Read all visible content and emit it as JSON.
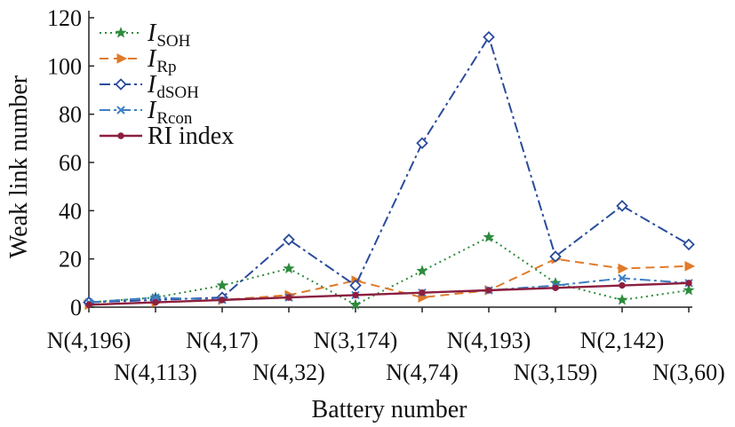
{
  "chart_data": {
    "type": "line",
    "xlabel": "Battery number",
    "ylabel": "Weak link number",
    "ylim": [
      0,
      120
    ],
    "yticks": [
      0,
      20,
      40,
      60,
      80,
      100,
      120
    ],
    "grid": false,
    "legend_position": "top-left",
    "categories": [
      "N(4,196)",
      "N(4,113)",
      "N(4,17)",
      "N(4,32)",
      "N(3,174)",
      "N(4,74)",
      "N(4,193)",
      "N(3,159)",
      "N(2,142)",
      "N(3,60)"
    ],
    "series": [
      {
        "key": "isoh",
        "name_main": "I",
        "name_sub": "SOH",
        "color": "#2e8b3e",
        "marker": "star",
        "dash": "2,4",
        "values": [
          2,
          4,
          9,
          16,
          1,
          15,
          29,
          10,
          3,
          7
        ]
      },
      {
        "key": "irp",
        "name_main": "I",
        "name_sub": "Rp",
        "color": "#e07b2a",
        "marker": "triangle-right",
        "dash": "10,6",
        "values": [
          1,
          2,
          3,
          5,
          11,
          4,
          7,
          20,
          16,
          17
        ]
      },
      {
        "key": "idsoh",
        "name_main": "I",
        "name_sub": "dSOH",
        "color": "#2b4c9c",
        "marker": "diamond",
        "dash": "12,4,3,4",
        "values": [
          2,
          3,
          4,
          28,
          9,
          68,
          112,
          21,
          42,
          26
        ]
      },
      {
        "key": "ircon",
        "name_main": "I",
        "name_sub": "Rcon",
        "color": "#3f7fc4",
        "marker": "x",
        "dash": "12,4,3,4",
        "values": [
          2,
          4,
          3,
          4,
          5,
          6,
          7,
          9,
          12,
          10
        ]
      },
      {
        "key": "ri",
        "name_main": "RI index",
        "name_sub": "",
        "color": "#8c1f3f",
        "marker": "circle",
        "dash": "",
        "values": [
          1,
          2,
          3,
          4,
          5,
          6,
          7,
          8,
          9,
          10
        ]
      }
    ]
  }
}
